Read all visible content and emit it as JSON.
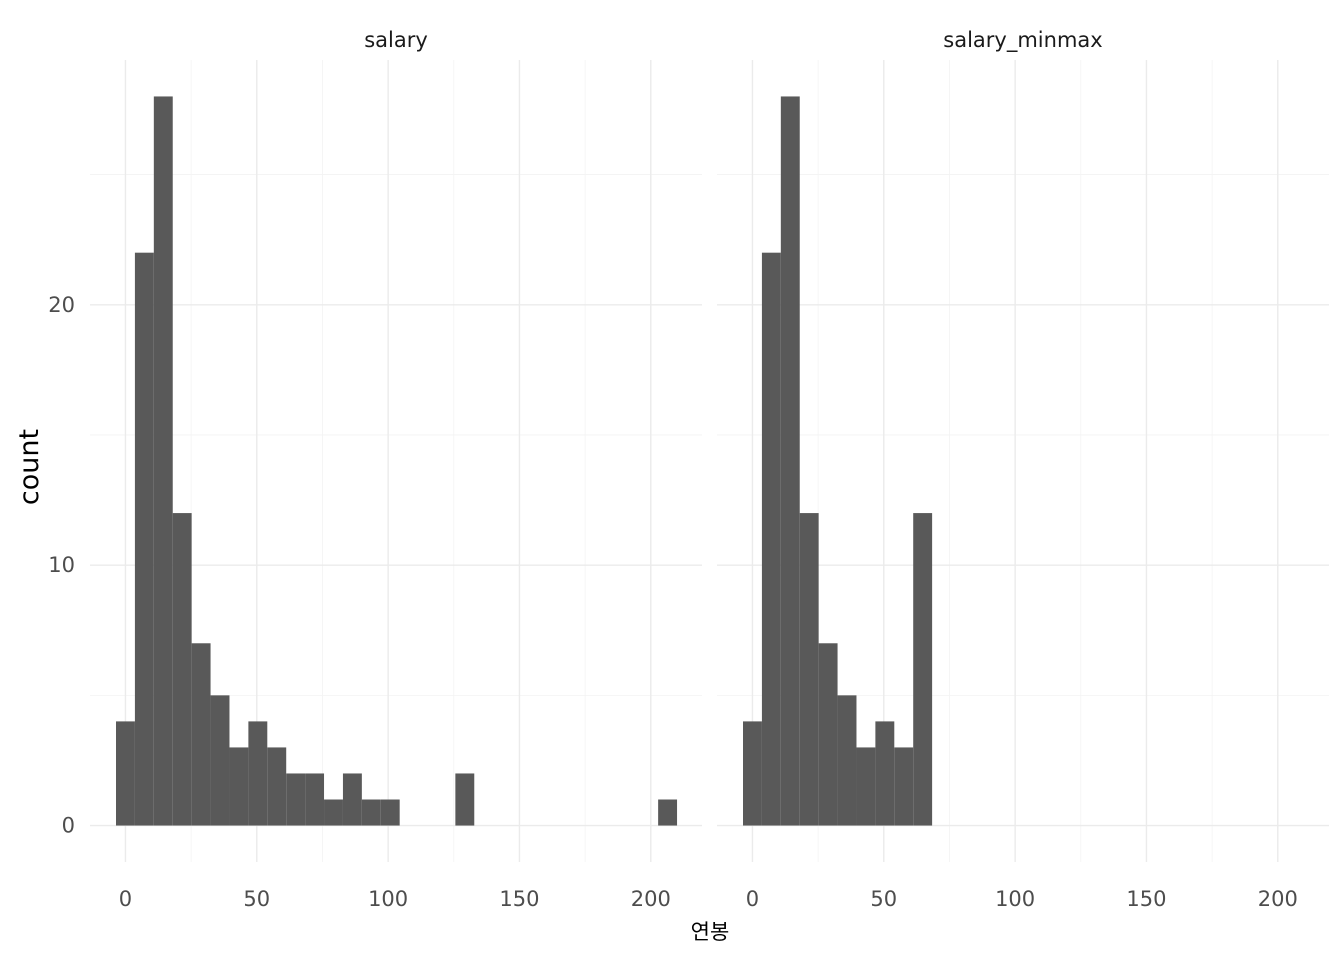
{
  "chart_data": {
    "type": "bar",
    "subtype": "histogram-facets",
    "facets": [
      {
        "title": "salary",
        "bins": [
          {
            "x0": -3.6,
            "x1": 3.6,
            "count": 4
          },
          {
            "x0": 3.6,
            "x1": 10.8,
            "count": 22
          },
          {
            "x0": 10.8,
            "x1": 18.0,
            "count": 28
          },
          {
            "x0": 18.0,
            "x1": 25.2,
            "count": 12
          },
          {
            "x0": 25.2,
            "x1": 32.4,
            "count": 7
          },
          {
            "x0": 32.4,
            "x1": 39.6,
            "count": 5
          },
          {
            "x0": 39.6,
            "x1": 46.8,
            "count": 3
          },
          {
            "x0": 46.8,
            "x1": 54.0,
            "count": 4
          },
          {
            "x0": 54.0,
            "x1": 61.2,
            "count": 3
          },
          {
            "x0": 61.2,
            "x1": 68.4,
            "count": 2
          },
          {
            "x0": 68.4,
            "x1": 75.6,
            "count": 2
          },
          {
            "x0": 75.6,
            "x1": 82.8,
            "count": 1
          },
          {
            "x0": 82.8,
            "x1": 90.0,
            "count": 2
          },
          {
            "x0": 90.0,
            "x1": 97.2,
            "count": 1
          },
          {
            "x0": 97.2,
            "x1": 104.4,
            "count": 1
          },
          {
            "x0": 125.6,
            "x1": 132.8,
            "count": 2
          },
          {
            "x0": 202.8,
            "x1": 210.0,
            "count": 1
          }
        ]
      },
      {
        "title": "salary_minmax",
        "bins": [
          {
            "x0": -3.6,
            "x1": 3.6,
            "count": 4
          },
          {
            "x0": 3.6,
            "x1": 10.8,
            "count": 22
          },
          {
            "x0": 10.8,
            "x1": 18.0,
            "count": 28
          },
          {
            "x0": 18.0,
            "x1": 25.2,
            "count": 12
          },
          {
            "x0": 25.2,
            "x1": 32.4,
            "count": 7
          },
          {
            "x0": 32.4,
            "x1": 39.6,
            "count": 5
          },
          {
            "x0": 39.6,
            "x1": 46.8,
            "count": 3
          },
          {
            "x0": 46.8,
            "x1": 54.0,
            "count": 4
          },
          {
            "x0": 54.0,
            "x1": 61.2,
            "count": 3
          },
          {
            "x0": 61.2,
            "x1": 68.4,
            "count": 12
          }
        ]
      }
    ],
    "xlabel": "연봉",
    "ylabel": "count",
    "xlim": [
      -13.5,
      219.5
    ],
    "ylim": [
      -1.4,
      29.4
    ],
    "x_ticks": [
      0,
      50,
      100,
      150,
      200
    ],
    "x_tick_labels": [
      "0",
      "50",
      "100",
      "150",
      "200"
    ],
    "x_minor_ticks": [
      25,
      75,
      125,
      175
    ],
    "y_ticks": [
      0,
      10,
      20
    ],
    "y_tick_labels": [
      "0",
      "10",
      "20"
    ],
    "y_minor_ticks": [
      5,
      15,
      25
    ],
    "grid": true,
    "legend": "none",
    "bar_color": "#595959",
    "grid_color": "#ebebeb"
  }
}
